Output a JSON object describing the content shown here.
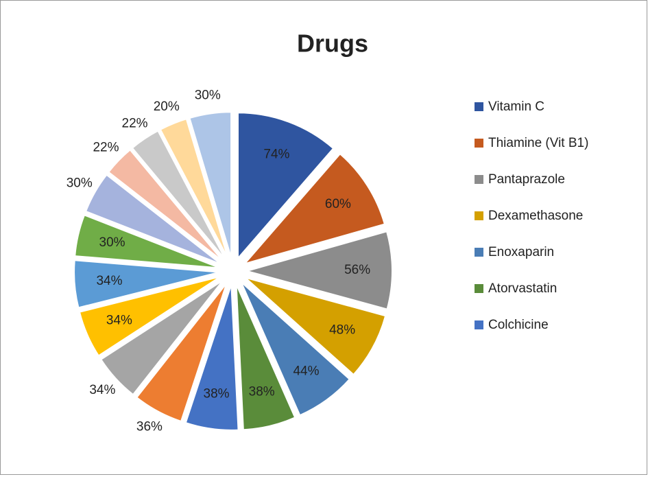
{
  "chart_data": {
    "type": "pie",
    "title": "Drugs",
    "categories": [
      "Vitamin C",
      "Thiamine (Vit B1)",
      "Pantaprazole",
      "Dexamethasone",
      "Enoxaparin",
      "Atorvastatin",
      "Colchicine",
      null,
      null,
      null,
      null,
      null,
      null,
      null,
      null,
      null,
      null
    ],
    "values": [
      74,
      60,
      56,
      48,
      44,
      38,
      38,
      36,
      34,
      34,
      34,
      30,
      30,
      22,
      22,
      20,
      30
    ],
    "value_labels": [
      "74%",
      "60%",
      "56%",
      "48%",
      "44%",
      "38%",
      "38%",
      "36%",
      "34%",
      "34%",
      "34%",
      "30%",
      "30%",
      "22%",
      "22%",
      "20%",
      "30%"
    ],
    "colors": [
      "#2f55a0",
      "#c55a1f",
      "#8c8c8c",
      "#d4a000",
      "#4a7db5",
      "#5a8c3a",
      "#4472c4",
      "#ed7d31",
      "#a5a5a5",
      "#ffc000",
      "#5b9bd5",
      "#70ad47",
      "#a5b3dd",
      "#f4b9a3",
      "#c9c9c9",
      "#ffd99a",
      "#adc5e7"
    ],
    "legend": "right"
  }
}
